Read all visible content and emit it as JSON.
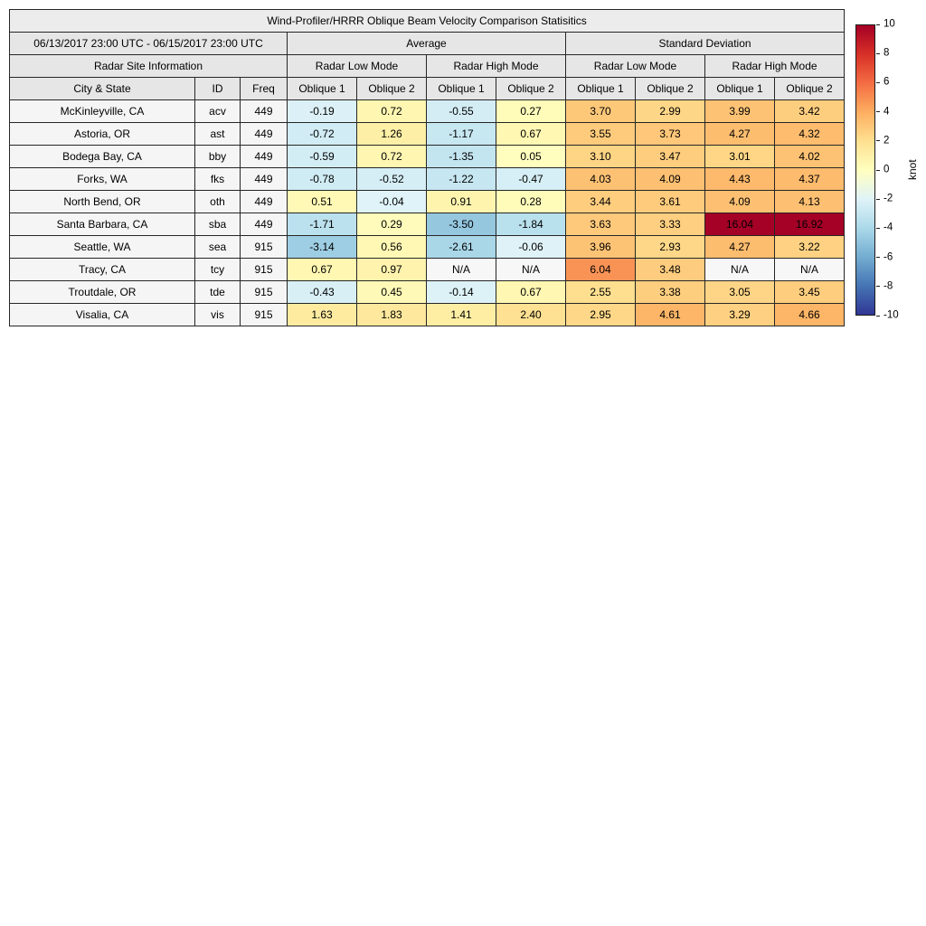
{
  "headers": {
    "average": "Average",
    "std_dev": "Standard Deviation",
    "site_info": "Radar Site Information",
    "low_mode": "Radar Low Mode",
    "high_mode": "Radar High Mode",
    "city": "City & State",
    "id": "ID",
    "freq": "Freq",
    "oblique1": "Oblique 1",
    "oblique2": "Oblique 2"
  },
  "colorbar": {
    "label": "knot",
    "vmin": -10,
    "vmax": 10,
    "ticks": [
      "10",
      "8",
      "6",
      "4",
      "2",
      "0",
      "-2",
      "-4",
      "-6",
      "-8",
      "-10"
    ],
    "gradient_stops_top_to_bottom": [
      "#a50026",
      "#d73027",
      "#f46d43",
      "#fdae61",
      "#fee090",
      "#ffffbf",
      "#e0f3f8",
      "#abd9e9",
      "#74add1",
      "#4575b4",
      "#313695"
    ],
    "positive_value_stops": [
      "#ffffbf",
      "#fee090",
      "#fdae61",
      "#f46d43",
      "#d73027"
    ],
    "negative_value_stops": [
      "#e0f3f8",
      "#abd9e9",
      "#74add1",
      "#4575b4",
      "#313695"
    ],
    "over_range_color": "#a50026"
  },
  "chart_data": {
    "type": "table",
    "title": "Wind-Profiler/HRRR Oblique Beam Velocity Comparison Statisitics",
    "date_range": "06/13/2017 23:00 UTC - 06/15/2017 23:00 UTC",
    "value_unit": "knot",
    "color_scale": {
      "min": -10,
      "max": 10,
      "colormap": "red-yellow-blue diverging"
    },
    "na_label": "N/A",
    "value_columns": [
      "Average Radar Low Mode Oblique 1",
      "Average Radar Low Mode Oblique 2",
      "Average Radar High Mode Oblique 1",
      "Average Radar High Mode Oblique 2",
      "Standard Deviation Radar Low Mode Oblique 1",
      "Standard Deviation Radar Low Mode Oblique 2",
      "Standard Deviation Radar High Mode Oblique 1",
      "Standard Deviation Radar High Mode Oblique 2"
    ],
    "rows": [
      {
        "city": "McKinleyville, CA",
        "id": "acv",
        "freq": "449",
        "values": [
          "-0.19",
          "0.72",
          "-0.55",
          "0.27",
          "3.70",
          "2.99",
          "3.99",
          "3.42"
        ]
      },
      {
        "city": "Astoria, OR",
        "id": "ast",
        "freq": "449",
        "values": [
          "-0.72",
          "1.26",
          "-1.17",
          "0.67",
          "3.55",
          "3.73",
          "4.27",
          "4.32"
        ]
      },
      {
        "city": "Bodega Bay, CA",
        "id": "bby",
        "freq": "449",
        "values": [
          "-0.59",
          "0.72",
          "-1.35",
          "0.05",
          "3.10",
          "3.47",
          "3.01",
          "4.02"
        ]
      },
      {
        "city": "Forks, WA",
        "id": "fks",
        "freq": "449",
        "values": [
          "-0.78",
          "-0.52",
          "-1.22",
          "-0.47",
          "4.03",
          "4.09",
          "4.43",
          "4.37"
        ]
      },
      {
        "city": "North Bend, OR",
        "id": "oth",
        "freq": "449",
        "values": [
          "0.51",
          "-0.04",
          "0.91",
          "0.28",
          "3.44",
          "3.61",
          "4.09",
          "4.13"
        ]
      },
      {
        "city": "Santa Barbara, CA",
        "id": "sba",
        "freq": "449",
        "values": [
          "-1.71",
          "0.29",
          "-3.50",
          "-1.84",
          "3.63",
          "3.33",
          "16.04",
          "16.92"
        ]
      },
      {
        "city": "Seattle, WA",
        "id": "sea",
        "freq": "915",
        "values": [
          "-3.14",
          "0.56",
          "-2.61",
          "-0.06",
          "3.96",
          "2.93",
          "4.27",
          "3.22"
        ]
      },
      {
        "city": "Tracy, CA",
        "id": "tcy",
        "freq": "915",
        "values": [
          "0.67",
          "0.97",
          "N/A",
          "N/A",
          "6.04",
          "3.48",
          "N/A",
          "N/A"
        ]
      },
      {
        "city": "Troutdale, OR",
        "id": "tde",
        "freq": "915",
        "values": [
          "-0.43",
          "0.45",
          "-0.14",
          "0.67",
          "2.55",
          "3.38",
          "3.05",
          "3.45"
        ]
      },
      {
        "city": "Visalia, CA",
        "id": "vis",
        "freq": "915",
        "values": [
          "1.63",
          "1.83",
          "1.41",
          "2.40",
          "2.95",
          "4.61",
          "3.29",
          "4.66"
        ]
      }
    ]
  }
}
